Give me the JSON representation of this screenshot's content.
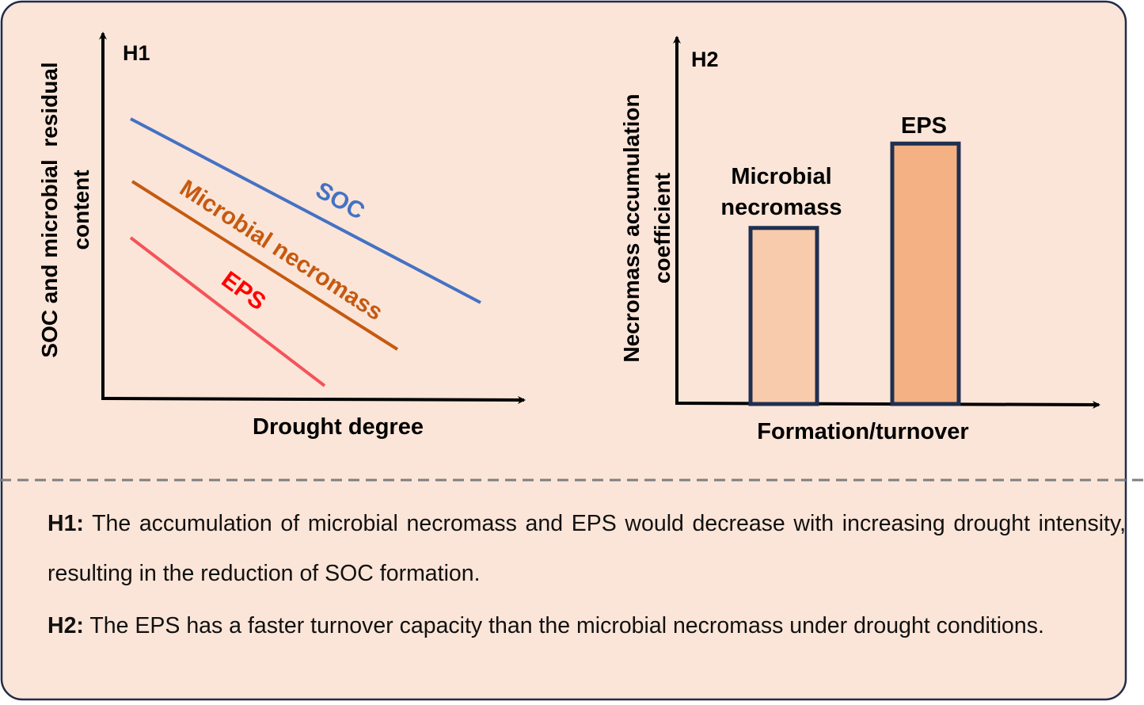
{
  "panel_h1": {
    "tag": "H1",
    "y_label_line1": "SOC and microbial  residual",
    "y_label_line2": "content",
    "x_label": "Drought degree",
    "lines": [
      {
        "label": "SOC",
        "color": "#4472c4"
      },
      {
        "label": "Microbial necromass",
        "color": "#c55a11"
      },
      {
        "label": "EPS",
        "color": "#f4535a",
        "label_color": "#ff0000"
      }
    ]
  },
  "panel_h2": {
    "tag": "H2",
    "y_label_line1": "Necromass accumulation",
    "y_label_line2": "coefficient",
    "x_label": "Formation/turnover",
    "bars": [
      {
        "label_line1": "Microbial",
        "label_line2": "necromass",
        "relative_value": 0.48,
        "fill": "#f8cbad"
      },
      {
        "label_line1": "EPS",
        "label_line2": "",
        "relative_value": 0.71,
        "fill": "#f4b183"
      }
    ],
    "bar_outline": "#1f3050"
  },
  "hypotheses": {
    "h1_tag": "H1:",
    "h1_text": " The accumulation of microbial necromass and EPS would decrease with increasing drought intensity, resulting in the reduction of SOC formation.",
    "h2_tag": "H2:",
    "h2_text": " The EPS has a faster turnover capacity than the microbial necromass under drought conditions."
  },
  "colors": {
    "background": "#fbe5d8",
    "border": "#1f2d4a",
    "divider": "#7f7f7f"
  }
}
